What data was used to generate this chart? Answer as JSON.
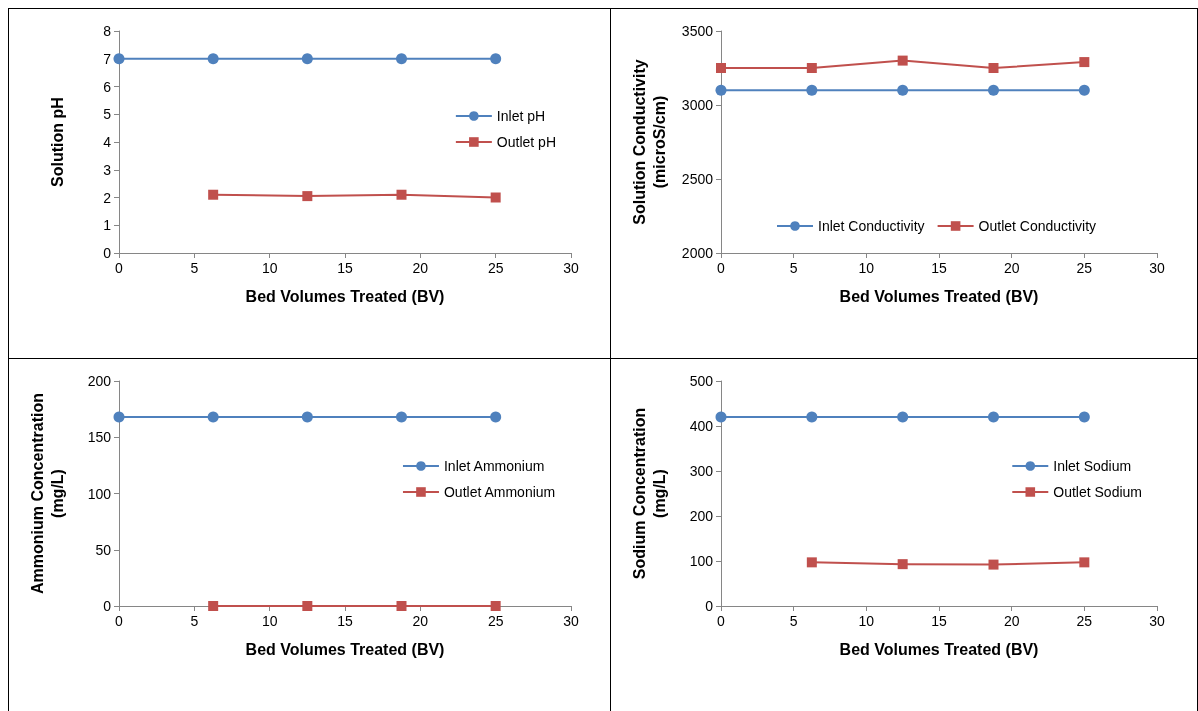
{
  "chart_data": [
    {
      "type": "line",
      "xlabel": "Bed Volumes Treated (BV)",
      "ylabel": "Solution pH",
      "xlim": [
        0,
        30
      ],
      "xticks": [
        0,
        5,
        10,
        15,
        20,
        25,
        30
      ],
      "ylim": [
        0,
        8
      ],
      "yticks": [
        0,
        1,
        2,
        3,
        4,
        5,
        6,
        7,
        8
      ],
      "grid": false,
      "legend": "right",
      "series": [
        {
          "name": "Inlet pH",
          "color": "#4f81bd",
          "marker": "circle",
          "x": [
            0,
            6.25,
            12.5,
            18.75,
            25
          ],
          "values": [
            7,
            7,
            7,
            7,
            7
          ]
        },
        {
          "name": "Outlet pH",
          "color": "#c0504d",
          "marker": "square",
          "x": [
            6.25,
            12.5,
            18.75,
            25
          ],
          "values": [
            2.1,
            2.05,
            2.1,
            2.0
          ]
        }
      ]
    },
    {
      "type": "line",
      "xlabel": "Bed Volumes Treated (BV)",
      "ylabel": "Solution Conductivity\n(microS/cm)",
      "xlim": [
        0,
        30
      ],
      "xticks": [
        0,
        5,
        10,
        15,
        20,
        25,
        30
      ],
      "ylim": [
        2000,
        3500
      ],
      "yticks": [
        2000,
        2500,
        3000,
        3500
      ],
      "grid": false,
      "legend": "bottom",
      "series": [
        {
          "name": "Inlet Conductivity",
          "color": "#4f81bd",
          "marker": "circle",
          "x": [
            0,
            6.25,
            12.5,
            18.75,
            25
          ],
          "values": [
            3100,
            3100,
            3100,
            3100,
            3100
          ]
        },
        {
          "name": "Outlet Conductivity",
          "color": "#c0504d",
          "marker": "square",
          "x": [
            0,
            6.25,
            12.5,
            18.75,
            25
          ],
          "values": [
            3250,
            3250,
            3300,
            3250,
            3290
          ]
        }
      ]
    },
    {
      "type": "line",
      "xlabel": "Bed Volumes Treated (BV)",
      "ylabel": "Ammonium Concentration\n(mg/L)",
      "xlim": [
        0,
        30
      ],
      "xticks": [
        0,
        5,
        10,
        15,
        20,
        25,
        30
      ],
      "ylim": [
        0,
        200
      ],
      "yticks": [
        0,
        50,
        100,
        150,
        200
      ],
      "grid": false,
      "legend": "right",
      "series": [
        {
          "name": "Inlet Ammonium",
          "color": "#4f81bd",
          "marker": "circle",
          "x": [
            0,
            6.25,
            12.5,
            18.75,
            25
          ],
          "values": [
            168,
            168,
            168,
            168,
            168
          ]
        },
        {
          "name": "Outlet Ammonium",
          "color": "#c0504d",
          "marker": "square",
          "x": [
            6.25,
            12.5,
            18.75,
            25
          ],
          "values": [
            0,
            0,
            0,
            0
          ]
        }
      ]
    },
    {
      "type": "line",
      "xlabel": "Bed Volumes Treated (BV)",
      "ylabel": "Sodium Concentration\n(mg/L)",
      "xlim": [
        0,
        30
      ],
      "xticks": [
        0,
        5,
        10,
        15,
        20,
        25,
        30
      ],
      "ylim": [
        0,
        500
      ],
      "yticks": [
        0,
        100,
        200,
        300,
        400,
        500
      ],
      "grid": false,
      "legend": "right",
      "series": [
        {
          "name": "Inlet Sodium",
          "color": "#4f81bd",
          "marker": "circle",
          "x": [
            0,
            6.25,
            12.5,
            18.75,
            25
          ],
          "values": [
            420,
            420,
            420,
            420,
            420
          ]
        },
        {
          "name": "Outlet Sodium",
          "color": "#c0504d",
          "marker": "square",
          "x": [
            6.25,
            12.5,
            18.75,
            25
          ],
          "values": [
            97,
            93,
            92,
            97
          ]
        }
      ]
    }
  ]
}
